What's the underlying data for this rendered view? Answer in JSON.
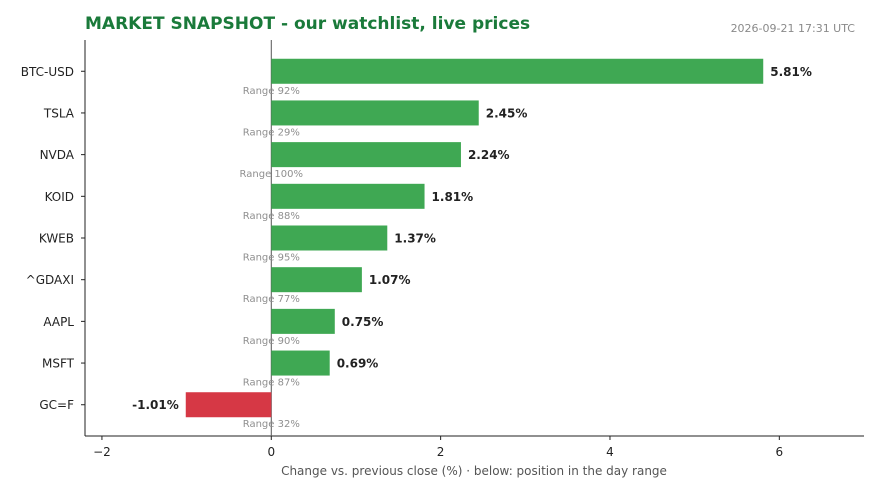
{
  "header": {
    "title": "MARKET SNAPSHOT - our watchlist, live prices",
    "timestamp": "2026-09-21 17:31 UTC"
  },
  "colors": {
    "positive": "#3fa853",
    "negative": "#d63845",
    "title": "#1a7a3a"
  },
  "chart_data": {
    "type": "bar",
    "orientation": "horizontal",
    "title": "MARKET SNAPSHOT - our watchlist, live prices",
    "xlabel": "Change vs. previous close (%)  ·  below: position in the day range",
    "ylabel": "",
    "xlim": [
      -2.2,
      7.0
    ],
    "xticks": [
      -2,
      0,
      2,
      4,
      6
    ],
    "xtick_labels": [
      "−2",
      "0",
      "2",
      "4",
      "6"
    ],
    "grid": false,
    "categories": [
      "BTC-USD",
      "TSLA",
      "NVDA",
      "KOID",
      "KWEB",
      "^GDAXI",
      "AAPL",
      "MSFT",
      "GC=F"
    ],
    "values": [
      5.81,
      2.45,
      2.24,
      1.81,
      1.37,
      1.07,
      0.75,
      0.69,
      -1.01
    ],
    "value_labels": [
      "5.81%",
      "2.45%",
      "2.24%",
      "1.81%",
      "1.37%",
      "1.07%",
      "0.75%",
      "0.69%",
      "-1.01%"
    ],
    "range_labels": [
      "Range 92%",
      "Range 29%",
      "Range 100%",
      "Range 88%",
      "Range 95%",
      "Range 77%",
      "Range 90%",
      "Range 87%",
      "Range 32%"
    ]
  }
}
